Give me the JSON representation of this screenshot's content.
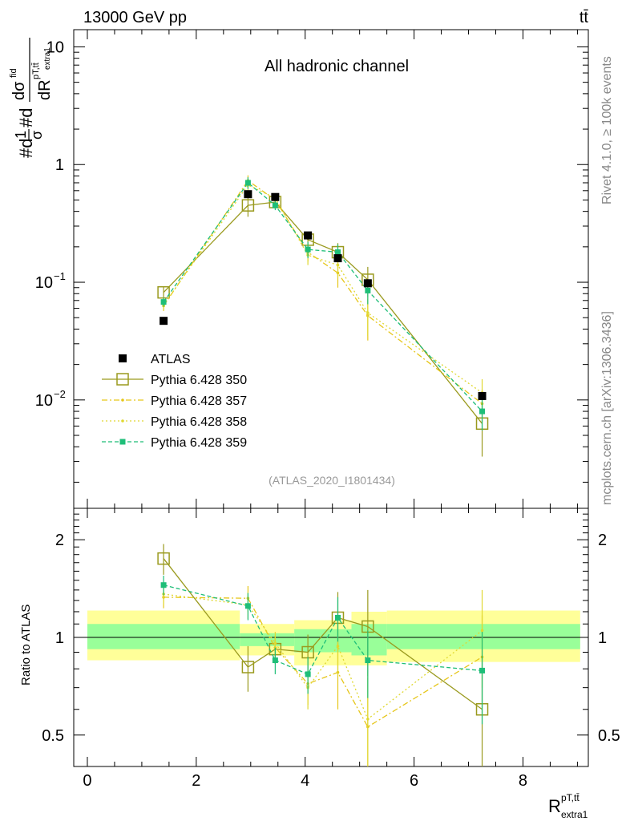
{
  "header": {
    "beam": "13000 GeV pp",
    "process": "tt̄",
    "panel_title": "All hadronic channel",
    "analysis_id": "(ATLAS_2020_I1801434)"
  },
  "side_text": {
    "rivet": "Rivet 4.1.0, ≥ 100k events",
    "mcplots": "mcplots.cern.ch [arXiv:1306.3436]"
  },
  "axis_labels": {
    "y_main_prefix": "#d",
    "y_main_frac_num": "1",
    "y_main_frac_den": "σ",
    "y_main_mid": "#d",
    "y_main_deriv_num": "dσ",
    "y_main_deriv_num_sup": "fid",
    "y_main_deriv_den": "dR",
    "y_main_deriv_den_sup": "pT,tt̄",
    "y_main_deriv_den_sub": "extra1",
    "y_ratio": "Ratio to ATLAS",
    "x_main": "R",
    "x_sup": "pT,tt̄",
    "x_sub": "extra1"
  },
  "chart_data": {
    "type": "line",
    "x_range": [
      -0.25,
      9.2
    ],
    "x_ticks": [
      0,
      2,
      4,
      6,
      8
    ],
    "x_tick_labels": [
      "0",
      "2",
      "4",
      "6",
      "8"
    ],
    "main_y_log": true,
    "main_y_range": [
      0.0012,
      14
    ],
    "main_y_ticks": [
      0.01,
      0.1,
      1,
      10
    ],
    "main_y_tick_labels": [
      {
        "base": "10",
        "exp": "−2"
      },
      {
        "base": "10",
        "exp": "−1"
      },
      {
        "base": "1",
        "exp": ""
      },
      {
        "base": "10",
        "exp": ""
      }
    ],
    "ratio_y_range": [
      0.4,
      2.5
    ],
    "ratio_y_ticks": [
      0.5,
      1,
      2
    ],
    "ratio_y_tick_labels": [
      "0.5",
      "1",
      "2"
    ],
    "data": {
      "name": "ATLAS",
      "x": [
        1.4,
        2.95,
        3.45,
        4.05,
        4.6,
        5.15,
        7.25
      ],
      "y": [
        0.047,
        0.56,
        0.53,
        0.25,
        0.16,
        0.098,
        0.0108
      ],
      "band_bins": [
        [
          0,
          2.8
        ],
        [
          2.8,
          3.8
        ],
        [
          3.8,
          4.85
        ],
        [
          4.85,
          5.5
        ],
        [
          5.5,
          9.05
        ]
      ],
      "band_inner": [
        [
          0.92,
          1.1
        ],
        [
          0.94,
          1.03
        ],
        [
          0.9,
          1.06
        ],
        [
          0.88,
          1.1
        ],
        [
          0.92,
          1.1
        ]
      ],
      "band_outer": [
        [
          0.85,
          1.21
        ],
        [
          0.88,
          1.1
        ],
        [
          0.82,
          1.13
        ],
        [
          0.82,
          1.2
        ],
        [
          0.84,
          1.21
        ]
      ]
    },
    "series": [
      {
        "name": "Pythia 6.428 350",
        "color": "#9a9a1e",
        "dash": "",
        "marker": "open-square",
        "x": [
          1.4,
          2.95,
          3.45,
          4.05,
          4.6,
          5.15,
          7.25
        ],
        "y": [
          0.082,
          0.45,
          0.48,
          0.23,
          0.18,
          0.105,
          0.0063
        ],
        "yerr": [
          0.009,
          0.09,
          0.05,
          0.03,
          0.035,
          0.03,
          0.003
        ],
        "ratio": [
          1.75,
          0.81,
          0.92,
          0.9,
          1.15,
          1.08,
          0.6
        ],
        "ratio_err": [
          0.19,
          0.13,
          0.09,
          0.12,
          0.23,
          0.32,
          0.28
        ]
      },
      {
        "name": "Pythia 6.428 357",
        "color": "#e6c619",
        "dash": "7,3,2,3",
        "marker": "small-dot",
        "x": [
          1.4,
          2.95,
          3.45,
          4.05,
          4.6,
          5.15,
          7.25
        ],
        "y": [
          0.063,
          0.73,
          0.5,
          0.18,
          0.12,
          0.052,
          0.0093
        ],
        "yerr": [
          0.006,
          0.08,
          0.05,
          0.03,
          0.03,
          0.02,
          0.003
        ],
        "ratio": [
          1.33,
          1.32,
          0.93,
          0.72,
          0.78,
          0.53,
          0.87
        ],
        "ratio_err": [
          0.1,
          0.12,
          0.08,
          0.1,
          0.18,
          0.22,
          0.3
        ]
      },
      {
        "name": "Pythia 6.428 358",
        "color": "#e0d830",
        "dash": "2,3",
        "marker": "small-dot",
        "x": [
          1.4,
          2.95,
          3.45,
          4.05,
          4.6,
          5.15,
          7.25
        ],
        "y": [
          0.064,
          0.67,
          0.52,
          0.17,
          0.14,
          0.055,
          0.0115
        ],
        "yerr": [
          0.006,
          0.08,
          0.05,
          0.03,
          0.03,
          0.02,
          0.0035
        ],
        "ratio": [
          1.36,
          1.26,
          0.96,
          0.7,
          0.94,
          0.56,
          1.05
        ],
        "ratio_err": [
          0.1,
          0.12,
          0.08,
          0.1,
          0.18,
          0.22,
          0.35
        ]
      },
      {
        "name": "Pythia 6.428 359",
        "color": "#1ebe78",
        "dash": "5,3",
        "marker": "filled-square",
        "x": [
          1.4,
          2.95,
          3.45,
          4.05,
          4.6,
          5.15,
          7.25
        ],
        "y": [
          0.068,
          0.7,
          0.45,
          0.19,
          0.18,
          0.085,
          0.008
        ],
        "yerr": [
          0.006,
          0.08,
          0.04,
          0.03,
          0.03,
          0.02,
          0.0025
        ],
        "ratio": [
          1.45,
          1.25,
          0.85,
          0.77,
          1.15,
          0.85,
          0.79
        ],
        "ratio_err": [
          0.1,
          0.12,
          0.08,
          0.1,
          0.18,
          0.2,
          0.25
        ]
      }
    ],
    "legend": [
      "ATLAS",
      "Pythia 6.428 350",
      "Pythia 6.428 357",
      "Pythia 6.428 358",
      "Pythia 6.428 359"
    ],
    "legend_position": "center-left"
  }
}
